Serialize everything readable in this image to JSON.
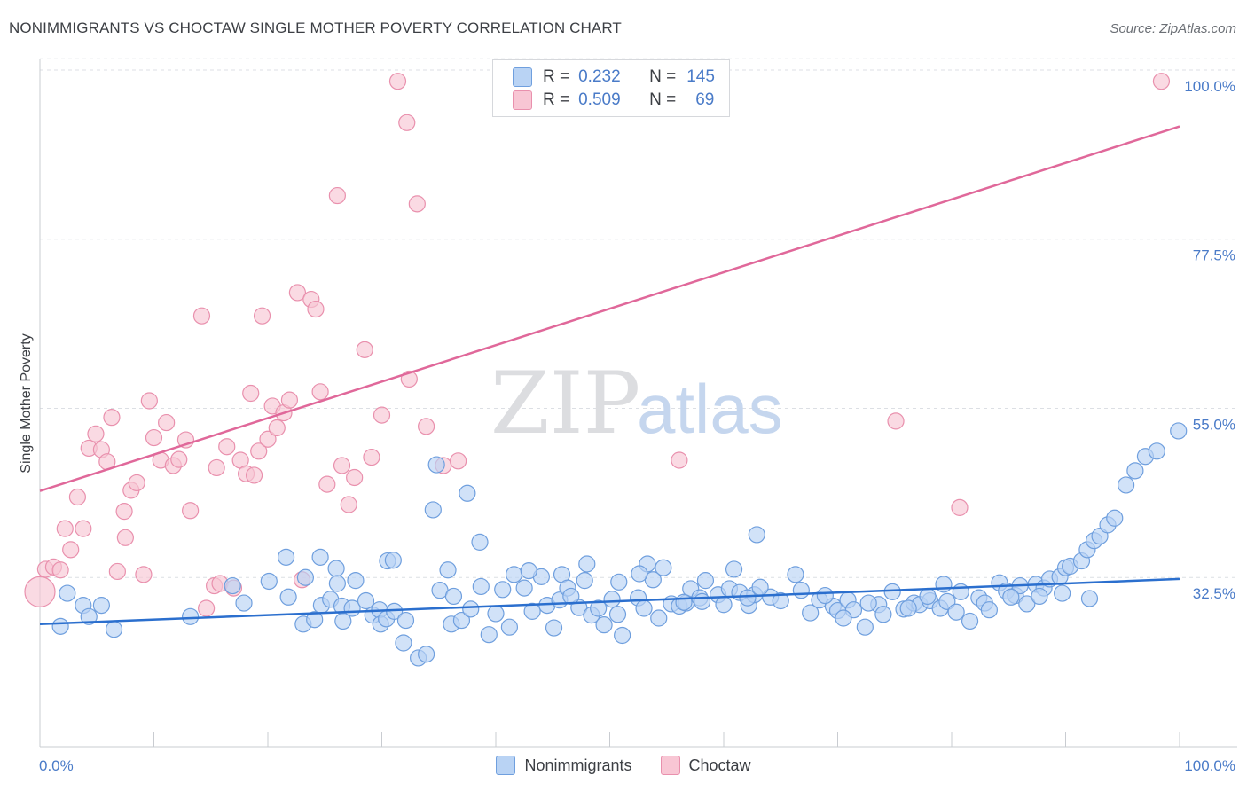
{
  "header": {
    "title": "NONIMMIGRANTS VS CHOCTAW SINGLE MOTHER POVERTY CORRELATION CHART",
    "source": "Source: ZipAtlas.com"
  },
  "watermark": {
    "zip": "ZIP",
    "atlas": "atlas"
  },
  "legend": {
    "rows": [
      {
        "r_label": "R =",
        "r_value": "0.232",
        "n_label": "N =",
        "n_value": "145"
      },
      {
        "r_label": "R =",
        "r_value": "0.509",
        "n_label": "N =",
        "n_value": "69"
      }
    ]
  },
  "colors": {
    "blue_fill": "#b9d3f4",
    "blue_stroke": "#6f9fde",
    "blue_line": "#2b6fce",
    "pink_fill": "#f8c6d4",
    "pink_stroke": "#e990ad",
    "pink_line": "#e0689a",
    "tick_text": "#4a7bc8",
    "grid": "#dcdfe4"
  },
  "chart_data": {
    "type": "scatter",
    "title": "NONIMMIGRANTS VS CHOCTAW SINGLE MOTHER POVERTY CORRELATION CHART",
    "xlabel": "",
    "ylabel": "Single Mother Poverty",
    "xlim": [
      0,
      100
    ],
    "ylim": [
      10,
      102
    ],
    "x_tick_labels": [
      "0.0%",
      "100.0%"
    ],
    "y_ticks": [
      {
        "value": 32.5,
        "label": "32.5%"
      },
      {
        "value": 55.0,
        "label": "55.0%"
      },
      {
        "value": 77.5,
        "label": "77.5%"
      },
      {
        "value": 100.0,
        "label": "100.0%"
      }
    ],
    "grid": "horizontal dashed",
    "legend_position": "top-center",
    "series": [
      {
        "name": "Nonimmigrants",
        "color": "#b9d3f4",
        "trend": {
          "x": [
            0,
            100
          ],
          "y": [
            26.3,
            32.3
          ]
        },
        "points": [
          [
            21.6,
            35.2
          ],
          [
            23.1,
            26.3
          ],
          [
            24.1,
            26.9
          ],
          [
            24.6,
            35.2
          ],
          [
            24.7,
            28.8
          ],
          [
            25.5,
            29.6
          ],
          [
            26.0,
            33.7
          ],
          [
            26.1,
            31.7
          ],
          [
            26.5,
            28.7
          ],
          [
            26.6,
            26.7
          ],
          [
            27.4,
            28.4
          ],
          [
            28.6,
            29.4
          ],
          [
            29.2,
            27.5
          ],
          [
            29.8,
            28.2
          ],
          [
            29.9,
            26.3
          ],
          [
            30.4,
            27.0
          ],
          [
            31.1,
            28.0
          ],
          [
            31.9,
            23.8
          ],
          [
            32.1,
            26.8
          ],
          [
            33.2,
            21.8
          ],
          [
            33.9,
            22.3
          ],
          [
            34.5,
            41.5
          ],
          [
            34.8,
            47.5
          ],
          [
            35.1,
            30.8
          ],
          [
            36.1,
            26.3
          ],
          [
            36.3,
            30.0
          ],
          [
            37.0,
            26.8
          ],
          [
            37.8,
            28.3
          ],
          [
            37.5,
            43.7
          ],
          [
            38.6,
            37.2
          ],
          [
            38.7,
            31.3
          ],
          [
            39.4,
            24.9
          ],
          [
            40.0,
            27.7
          ],
          [
            41.2,
            25.9
          ],
          [
            42.5,
            31.1
          ],
          [
            43.2,
            28.0
          ],
          [
            44.0,
            32.6
          ],
          [
            44.5,
            28.8
          ],
          [
            45.1,
            25.8
          ],
          [
            45.6,
            29.5
          ],
          [
            45.8,
            32.9
          ],
          [
            46.3,
            31.1
          ],
          [
            47.3,
            28.5
          ],
          [
            47.8,
            32.1
          ],
          [
            48.4,
            27.5
          ],
          [
            49.0,
            28.4
          ],
          [
            49.5,
            26.2
          ],
          [
            50.2,
            29.6
          ],
          [
            50.7,
            27.6
          ],
          [
            51.1,
            24.8
          ],
          [
            52.5,
            29.8
          ],
          [
            53.0,
            28.4
          ],
          [
            53.3,
            34.3
          ],
          [
            53.8,
            32.2
          ],
          [
            54.3,
            27.1
          ],
          [
            55.4,
            29.0
          ],
          [
            56.1,
            28.7
          ],
          [
            56.7,
            29.1
          ],
          [
            57.1,
            31.0
          ],
          [
            57.9,
            29.8
          ],
          [
            58.1,
            29.3
          ],
          [
            59.5,
            30.2
          ],
          [
            60.0,
            28.9
          ],
          [
            60.5,
            31.0
          ],
          [
            61.4,
            30.5
          ],
          [
            62.2,
            28.8
          ],
          [
            62.7,
            30.2
          ],
          [
            62.9,
            38.2
          ],
          [
            64.1,
            29.9
          ],
          [
            65.0,
            29.4
          ],
          [
            66.3,
            32.9
          ],
          [
            67.6,
            27.8
          ],
          [
            68.4,
            29.5
          ],
          [
            69.6,
            28.7
          ],
          [
            70.0,
            28.1
          ],
          [
            70.9,
            29.5
          ],
          [
            71.4,
            28.2
          ],
          [
            72.4,
            25.9
          ],
          [
            73.6,
            28.9
          ],
          [
            74.0,
            27.6
          ],
          [
            75.8,
            28.3
          ],
          [
            76.7,
            29.1
          ],
          [
            77.2,
            28.9
          ],
          [
            78.1,
            29.4
          ],
          [
            79.0,
            28.4
          ],
          [
            79.3,
            31.6
          ],
          [
            79.6,
            29.3
          ],
          [
            80.4,
            27.9
          ],
          [
            80.8,
            30.6
          ],
          [
            81.6,
            26.7
          ],
          [
            82.4,
            29.8
          ],
          [
            82.9,
            29.1
          ],
          [
            84.2,
            31.8
          ],
          [
            84.8,
            30.7
          ],
          [
            85.6,
            30.1
          ],
          [
            86.0,
            31.4
          ],
          [
            86.6,
            29.0
          ],
          [
            87.4,
            31.6
          ],
          [
            88.1,
            31.1
          ],
          [
            88.6,
            32.3
          ],
          [
            89.5,
            32.6
          ],
          [
            90.0,
            33.8
          ],
          [
            90.4,
            34.0
          ],
          [
            91.4,
            34.7
          ],
          [
            91.9,
            36.2
          ],
          [
            92.5,
            37.4
          ],
          [
            93.0,
            38.0
          ],
          [
            93.7,
            39.5
          ],
          [
            94.3,
            40.4
          ],
          [
            95.3,
            44.8
          ],
          [
            96.1,
            46.7
          ],
          [
            97.0,
            48.6
          ],
          [
            98.0,
            49.3
          ],
          [
            99.9,
            52.0
          ],
          [
            1.8,
            26.0
          ],
          [
            3.8,
            28.8
          ],
          [
            2.4,
            30.4
          ],
          [
            4.3,
            27.3
          ],
          [
            5.4,
            28.8
          ],
          [
            6.5,
            25.6
          ],
          [
            13.2,
            27.3
          ],
          [
            16.9,
            31.4
          ],
          [
            17.9,
            29.1
          ],
          [
            20.1,
            32.0
          ],
          [
            21.8,
            29.9
          ],
          [
            23.3,
            32.5
          ],
          [
            27.7,
            32.1
          ],
          [
            30.5,
            34.7
          ],
          [
            31.0,
            34.8
          ],
          [
            35.8,
            33.5
          ],
          [
            40.6,
            30.9
          ],
          [
            41.6,
            32.9
          ],
          [
            42.9,
            33.4
          ],
          [
            46.6,
            30.0
          ],
          [
            48.0,
            34.3
          ],
          [
            50.8,
            31.9
          ],
          [
            52.6,
            33.0
          ],
          [
            54.7,
            33.8
          ],
          [
            56.5,
            29.2
          ],
          [
            58.4,
            32.1
          ],
          [
            60.9,
            33.6
          ],
          [
            62.1,
            29.8
          ],
          [
            63.2,
            31.2
          ],
          [
            66.8,
            30.8
          ],
          [
            68.9,
            30.1
          ],
          [
            70.5,
            27.1
          ],
          [
            72.7,
            29.1
          ],
          [
            74.8,
            30.6
          ],
          [
            76.2,
            28.4
          ],
          [
            77.9,
            30.0
          ],
          [
            83.3,
            28.2
          ],
          [
            85.2,
            29.9
          ],
          [
            87.7,
            30.0
          ],
          [
            89.7,
            30.4
          ],
          [
            92.1,
            29.7
          ]
        ]
      },
      {
        "name": "Choctaw",
        "color": "#f8c6d4",
        "trend": {
          "x": [
            0,
            100
          ],
          "y": [
            44.0,
            92.5
          ]
        },
        "points": [
          [
            0.0,
            30.6
          ],
          [
            0.5,
            33.6
          ],
          [
            1.2,
            33.9
          ],
          [
            1.8,
            33.5
          ],
          [
            2.2,
            39.0
          ],
          [
            2.7,
            36.2
          ],
          [
            3.3,
            43.2
          ],
          [
            3.8,
            39.0
          ],
          [
            4.3,
            49.7
          ],
          [
            4.9,
            51.6
          ],
          [
            5.4,
            49.5
          ],
          [
            5.9,
            47.9
          ],
          [
            6.3,
            53.8
          ],
          [
            6.8,
            33.3
          ],
          [
            7.4,
            41.3
          ],
          [
            7.5,
            37.8
          ],
          [
            8.0,
            44.1
          ],
          [
            8.5,
            45.1
          ],
          [
            9.1,
            32.9
          ],
          [
            9.6,
            56.0
          ],
          [
            10.0,
            51.1
          ],
          [
            10.6,
            48.1
          ],
          [
            11.1,
            53.1
          ],
          [
            11.7,
            47.4
          ],
          [
            12.2,
            48.2
          ],
          [
            12.8,
            50.8
          ],
          [
            13.2,
            41.4
          ],
          [
            14.2,
            67.3
          ],
          [
            14.6,
            28.4
          ],
          [
            15.3,
            31.4
          ],
          [
            15.5,
            47.1
          ],
          [
            15.8,
            31.7
          ],
          [
            16.4,
            49.9
          ],
          [
            17.0,
            31.1
          ],
          [
            17.6,
            48.1
          ],
          [
            18.1,
            46.3
          ],
          [
            18.5,
            57.0
          ],
          [
            18.8,
            46.1
          ],
          [
            19.2,
            49.3
          ],
          [
            19.5,
            67.3
          ],
          [
            20.0,
            50.9
          ],
          [
            20.4,
            55.3
          ],
          [
            20.8,
            52.4
          ],
          [
            21.4,
            54.4
          ],
          [
            21.9,
            56.1
          ],
          [
            22.6,
            70.4
          ],
          [
            23.0,
            32.2
          ],
          [
            23.8,
            69.5
          ],
          [
            24.2,
            68.2
          ],
          [
            24.6,
            57.2
          ],
          [
            25.2,
            44.9
          ],
          [
            26.1,
            83.3
          ],
          [
            26.5,
            47.4
          ],
          [
            27.1,
            42.2
          ],
          [
            27.6,
            45.8
          ],
          [
            28.5,
            62.8
          ],
          [
            29.1,
            48.5
          ],
          [
            30.0,
            54.1
          ],
          [
            31.4,
            98.5
          ],
          [
            32.2,
            93.0
          ],
          [
            32.4,
            58.9
          ],
          [
            33.1,
            82.2
          ],
          [
            33.9,
            52.6
          ],
          [
            35.4,
            47.4
          ],
          [
            36.7,
            48.0
          ],
          [
            56.1,
            48.1
          ],
          [
            75.1,
            53.3
          ],
          [
            80.7,
            41.8
          ],
          [
            98.4,
            98.5
          ]
        ]
      }
    ]
  },
  "bottom_legend": {
    "items": [
      {
        "label": "Nonimmigrants"
      },
      {
        "label": "Choctaw"
      }
    ]
  }
}
